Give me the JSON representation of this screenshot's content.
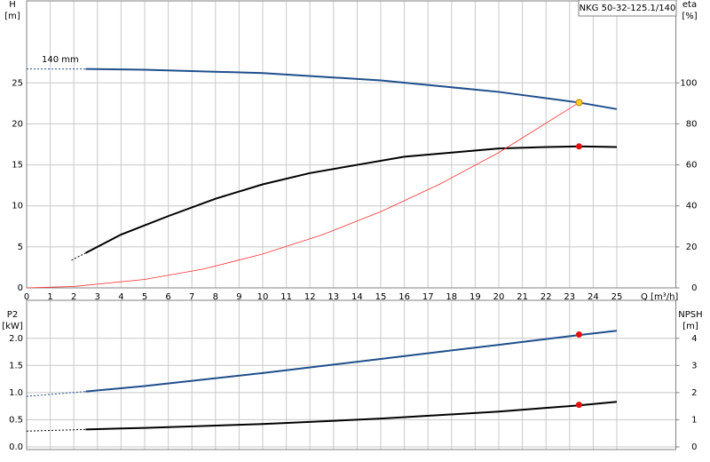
{
  "chart_data": [
    {
      "type": "line",
      "title": "NKG 50-32-125.1/140",
      "annotation": "140 mm",
      "x_label": "Q [m³/h]",
      "y_label": "H",
      "y_unit": "[m]",
      "y2_label": "eta",
      "y2_unit": "[%]",
      "xlim": [
        0,
        27.5
      ],
      "xticks": [
        0,
        1,
        2,
        3,
        4,
        5,
        6,
        7,
        8,
        9,
        10,
        11,
        12,
        13,
        14,
        15,
        16,
        17,
        18,
        19,
        20,
        21,
        22,
        23,
        24,
        25
      ],
      "ylim": [
        0,
        35
      ],
      "yticks": [
        0,
        5,
        10,
        15,
        20,
        25
      ],
      "y2lim": [
        0,
        140
      ],
      "y2ticks": [
        0,
        20,
        40,
        60,
        80,
        100
      ],
      "grid": true,
      "series": [
        {
          "color": "#1f4e8c",
          "style": "dashed",
          "axis": "y",
          "x": [
            0,
            2.5
          ],
          "values": [
            26.7,
            26.7
          ]
        },
        {
          "color": "#1f4e8c",
          "style": "solid",
          "axis": "y",
          "x": [
            2.5,
            5,
            10,
            15,
            20,
            23.4,
            25
          ],
          "values": [
            26.7,
            26.6,
            26.2,
            25.3,
            23.9,
            22.6,
            21.8
          ]
        },
        {
          "color": "#000000",
          "style": "dashed",
          "axis": "y2",
          "x": [
            1.9,
            2.5
          ],
          "values": [
            13.5,
            17
          ]
        },
        {
          "color": "#000000",
          "style": "solid",
          "axis": "y2",
          "x": [
            2.5,
            4,
            6,
            8,
            10,
            12,
            14,
            16,
            18,
            20,
            22,
            23.4,
            25
          ],
          "values": [
            17,
            26,
            35,
            43.5,
            50.5,
            56,
            60,
            64,
            66,
            68,
            68.7,
            69,
            68.7
          ]
        },
        {
          "color": "#ff3030",
          "style": "thin",
          "axis": "y",
          "x": [
            0,
            2,
            5,
            7.5,
            10,
            12.5,
            15,
            17.5,
            20,
            23.4
          ],
          "values": [
            0,
            0.17,
            1.03,
            2.3,
            4.13,
            6.45,
            9.29,
            12.65,
            16.5,
            22.6
          ]
        }
      ],
      "markers": [
        {
          "x": 23.4,
          "y": 22.6,
          "axis": "y",
          "color": "#ffd020"
        },
        {
          "x": 23.4,
          "y": 69,
          "axis": "y2",
          "color": "#e01010"
        }
      ]
    },
    {
      "type": "line",
      "y_label": "P2",
      "y_unit": "[kW]",
      "y2_label": "NPSH",
      "y2_unit": "[m]",
      "xlim": [
        0,
        27.5
      ],
      "ylim": [
        -0.05,
        2.7
      ],
      "yticks": [
        {
          "value": 0,
          "label": "0.0"
        },
        0.5,
        {
          "value": 1,
          "label": "1.0"
        },
        1.5,
        {
          "value": 2,
          "label": "2.0"
        }
      ],
      "y2lim": [
        -0.1,
        5.4
      ],
      "y2ticks": [
        0,
        1,
        2,
        3,
        4
      ],
      "grid": true,
      "series": [
        {
          "color": "#1f4e8c",
          "style": "dashed",
          "axis": "y",
          "x": [
            0,
            2.5
          ],
          "values": [
            0.93,
            1.02
          ]
        },
        {
          "color": "#1f4e8c",
          "style": "solid",
          "axis": "y",
          "x": [
            2.5,
            5,
            10,
            15,
            20,
            23.4,
            25
          ],
          "values": [
            1.02,
            1.12,
            1.36,
            1.62,
            1.88,
            2.06,
            2.14
          ]
        },
        {
          "color": "#000000",
          "style": "dashed",
          "axis": "y2",
          "x": [
            0,
            2.5
          ],
          "values": [
            0.58,
            0.64
          ]
        },
        {
          "color": "#000000",
          "style": "solid",
          "axis": "y2",
          "x": [
            2.5,
            5,
            10,
            15,
            20,
            23.4,
            25
          ],
          "values": [
            0.64,
            0.7,
            0.84,
            1.04,
            1.3,
            1.53,
            1.66
          ]
        }
      ],
      "markers": [
        {
          "x": 23.4,
          "y": 2.07,
          "axis": "y",
          "color": "#e01010"
        },
        {
          "x": 23.4,
          "y": 1.55,
          "axis": "y2",
          "color": "#e01010"
        }
      ]
    }
  ]
}
